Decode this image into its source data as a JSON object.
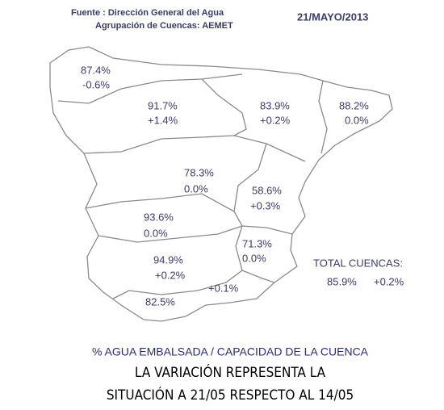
{
  "header": {
    "source": "Fuente : Dirección General del Agua",
    "group": "Agrupación de Cuencas: AEMET",
    "date": "21/MAYO/2013"
  },
  "regions": [
    {
      "percent": "87.4%",
      "change": "-0.6%"
    },
    {
      "percent": "91.7%",
      "change": "+1.4%"
    },
    {
      "percent": "83.9%",
      "change": "+0.2%"
    },
    {
      "percent": "88.2%",
      "change": "0.0%"
    },
    {
      "percent": "78.3%",
      "change": "0.0%"
    },
    {
      "percent": "58.6%",
      "change": "+0.3%"
    },
    {
      "percent": "93.6%",
      "change": "0.0%"
    },
    {
      "percent": "71.3%",
      "change": "0.0%"
    },
    {
      "percent": "94.9%",
      "change": "+0.2%"
    },
    {
      "percent": "82.5%",
      "change": "+0.1%"
    }
  ],
  "total": {
    "label": "TOTAL CUENCAS:",
    "percent": "85.9%",
    "change": "+0.2%"
  },
  "footer": {
    "line1": "% AGUA EMBALSADA / CAPACIDAD DE LA CUENCA",
    "line2": "LA VARIACIÓN REPRESENTA LA",
    "line3": "SITUACIÓN A 21/05 RESPECTO AL 14/05"
  }
}
